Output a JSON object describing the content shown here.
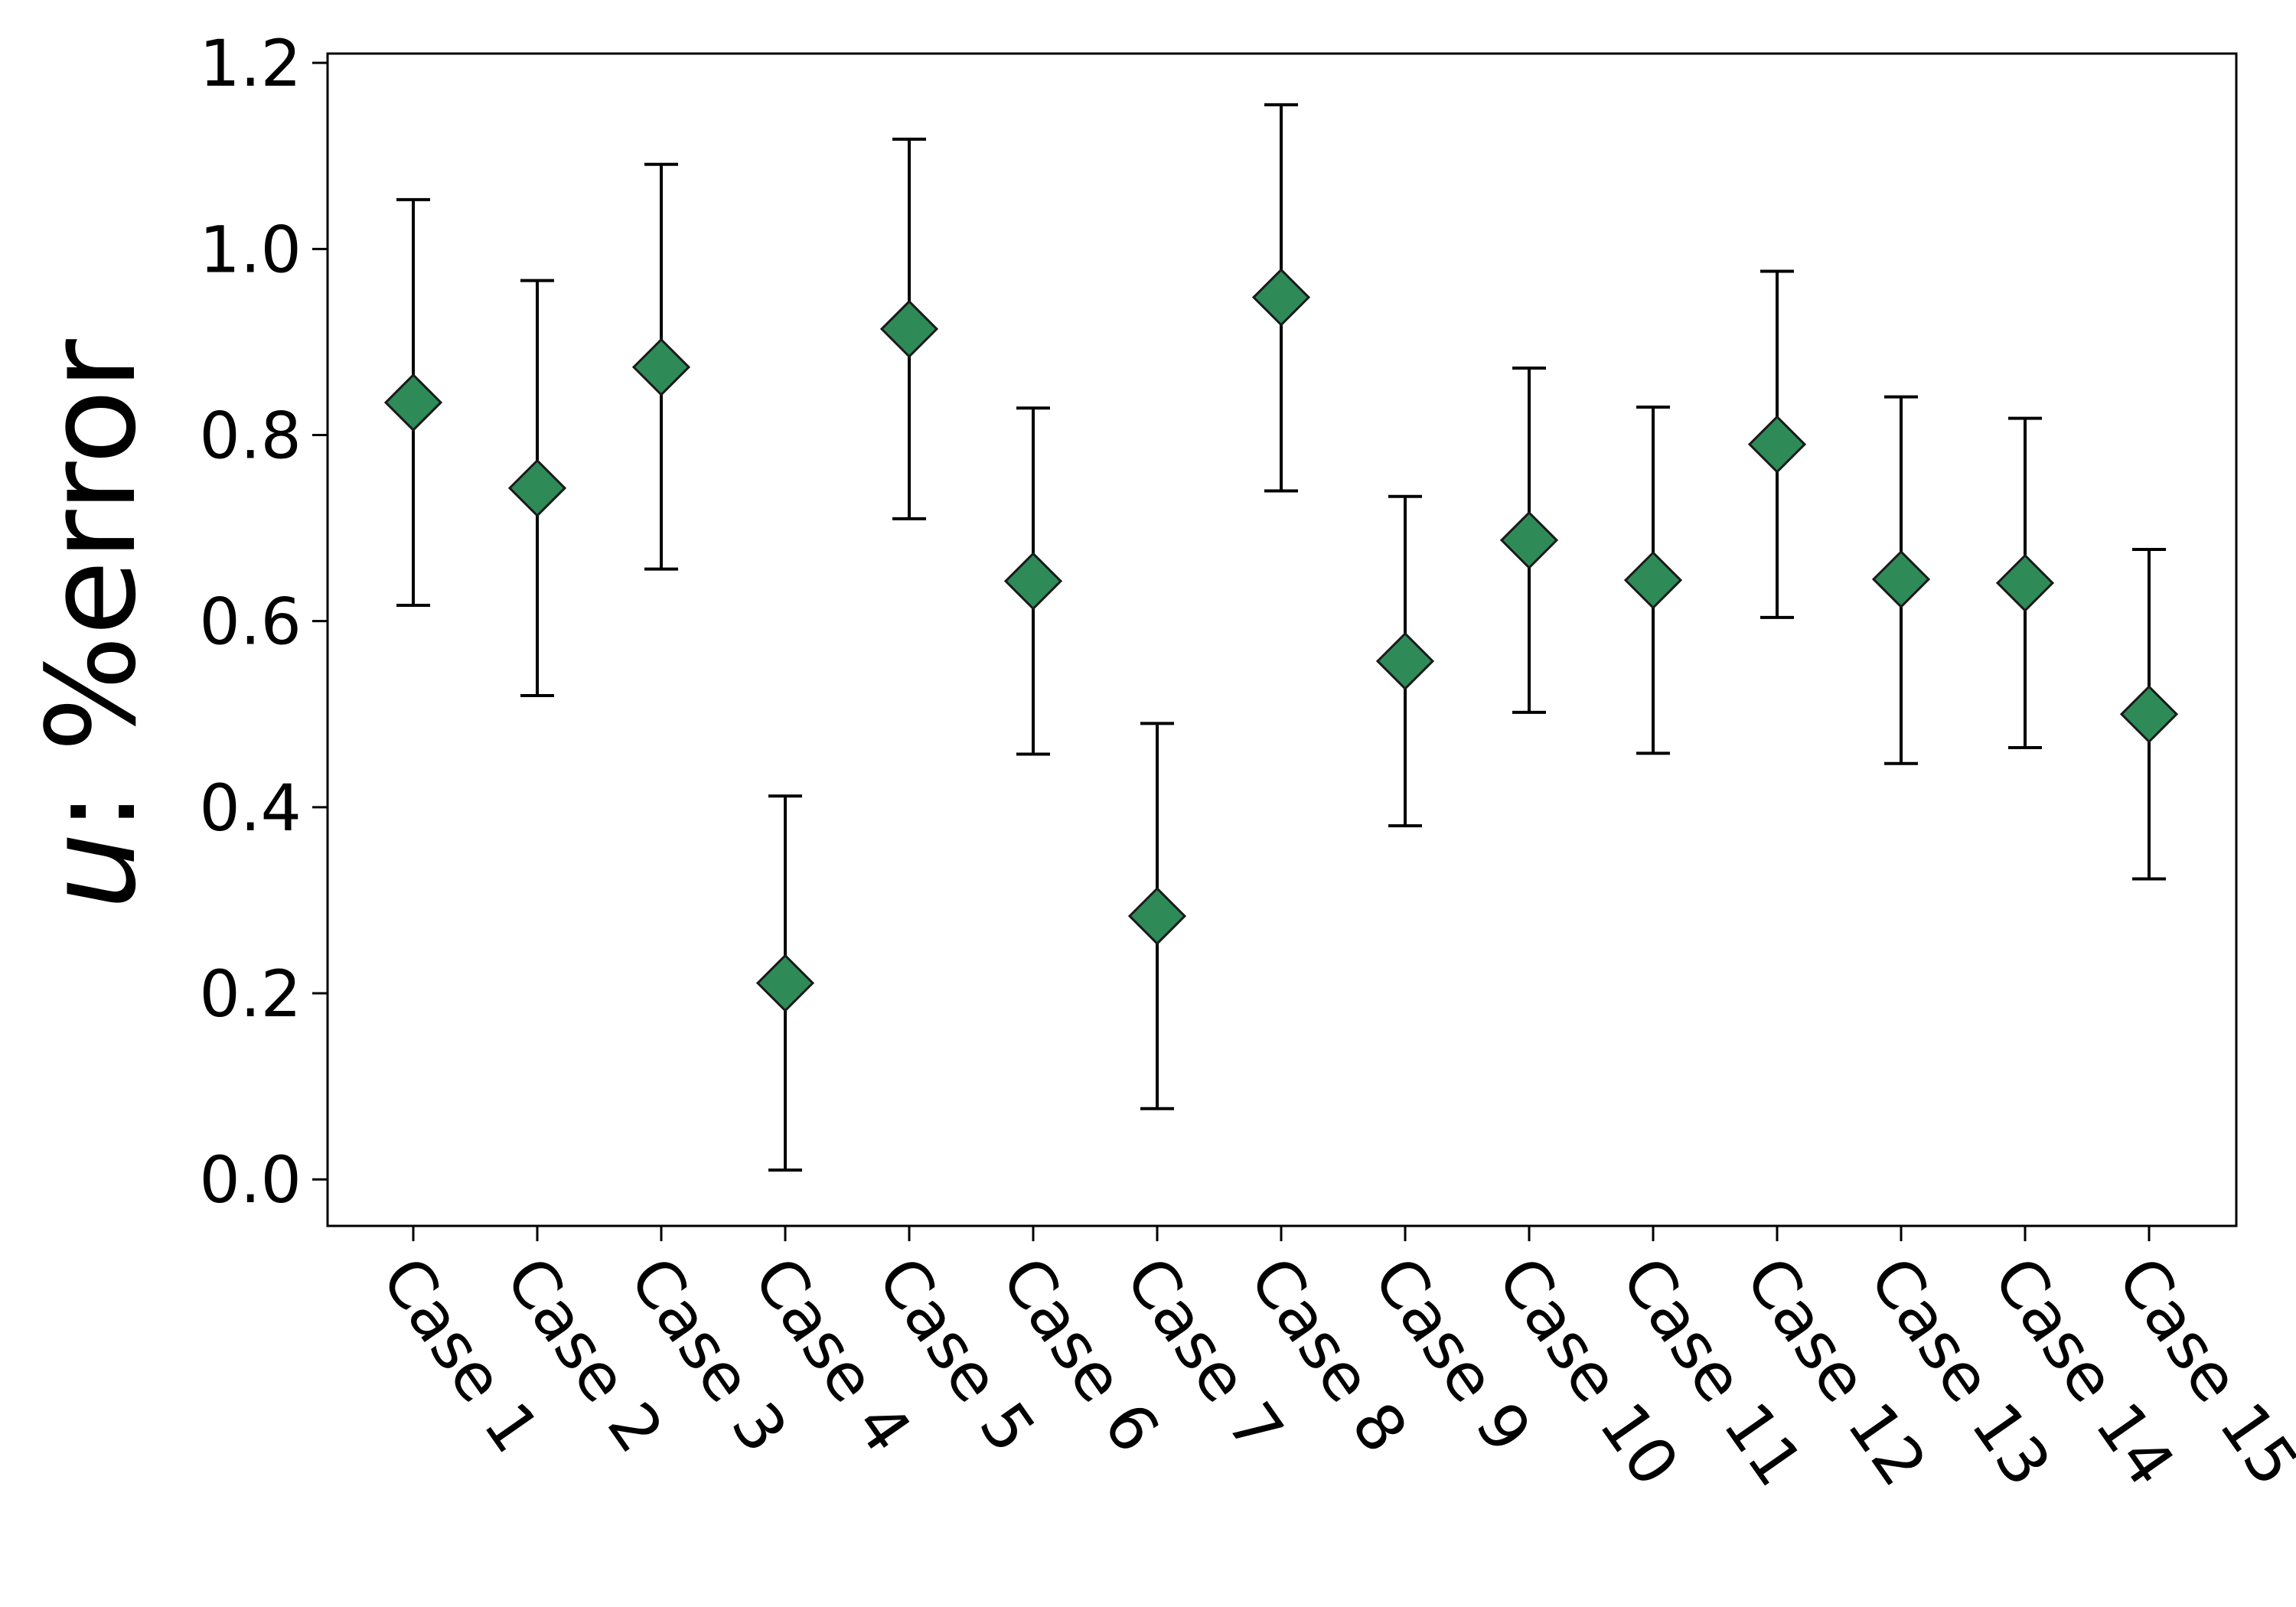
{
  "chart_data": {
    "type": "scatter",
    "title": "",
    "xlabel": "",
    "ylabel": "u: %error",
    "ylabel_var": "u",
    "ylabel_rest": ": %error",
    "ylim": [
      -0.05,
      1.21
    ],
    "yticks": [
      0.0,
      0.2,
      0.4,
      0.6,
      0.8,
      1.0,
      1.2
    ],
    "ytick_labels": [
      "0.0",
      "0.2",
      "0.4",
      "0.6",
      "0.8",
      "1.0",
      "1.2"
    ],
    "grid": false,
    "legend": "none",
    "marker": "diamond",
    "marker_color": "#2e8b57",
    "categories": [
      "Case 1",
      "Case 2",
      "Case 3",
      "Case 4",
      "Case 5",
      "Case 6",
      "Case 7",
      "Case 8",
      "Case 9",
      "Case 10",
      "Case 11",
      "Case 12",
      "Case 13",
      "Case 14",
      "Case 15"
    ],
    "values": [
      0.835,
      0.743,
      0.873,
      0.211,
      0.914,
      0.643,
      0.283,
      0.948,
      0.557,
      0.687,
      0.644,
      0.79,
      0.645,
      0.641,
      0.5
    ],
    "error_lower": [
      0.617,
      0.52,
      0.656,
      0.01,
      0.71,
      0.457,
      0.076,
      0.74,
      0.38,
      0.502,
      0.458,
      0.604,
      0.447,
      0.464,
      0.323
    ],
    "error_upper": [
      1.053,
      0.966,
      1.091,
      0.412,
      1.118,
      0.829,
      0.49,
      1.155,
      0.734,
      0.872,
      0.83,
      0.976,
      0.841,
      0.818,
      0.677
    ]
  }
}
